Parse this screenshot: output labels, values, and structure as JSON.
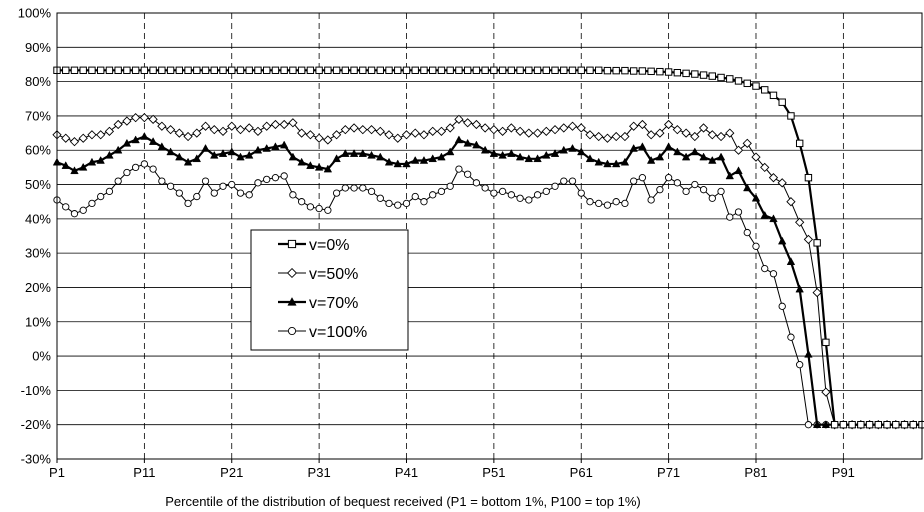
{
  "chart_data": {
    "type": "line",
    "xlabel": "Percentile of the distribution of bequest received (P1 = bottom 1%, P100 = top 1%)",
    "ylabel": "",
    "ylim": [
      -30,
      100
    ],
    "xlim": [
      1,
      100
    ],
    "y_ticks": [
      -30,
      -20,
      -10,
      0,
      10,
      20,
      30,
      40,
      50,
      60,
      70,
      80,
      90,
      100
    ],
    "y_tick_labels": [
      "-30%",
      "-20%",
      "-10%",
      "0%",
      "10%",
      "20%",
      "30%",
      "40%",
      "50%",
      "60%",
      "70%",
      "80%",
      "90%",
      "100%"
    ],
    "x_tick_labels": [
      "P1",
      "P11",
      "P21",
      "P31",
      "P41",
      "P51",
      "P61",
      "P71",
      "P81",
      "P91"
    ],
    "x_tick_positions": [
      1,
      11,
      21,
      31,
      41,
      51,
      61,
      71,
      81,
      91
    ],
    "grid": {
      "horizontal": "solid",
      "vertical": "dashed"
    },
    "legend_position": "left-center",
    "x": [
      1,
      2,
      3,
      4,
      5,
      6,
      7,
      8,
      9,
      10,
      11,
      12,
      13,
      14,
      15,
      16,
      17,
      18,
      19,
      20,
      21,
      22,
      23,
      24,
      25,
      26,
      27,
      28,
      29,
      30,
      31,
      32,
      33,
      34,
      35,
      36,
      37,
      38,
      39,
      40,
      41,
      42,
      43,
      44,
      45,
      46,
      47,
      48,
      49,
      50,
      51,
      52,
      53,
      54,
      55,
      56,
      57,
      58,
      59,
      60,
      61,
      62,
      63,
      64,
      65,
      66,
      67,
      68,
      69,
      70,
      71,
      72,
      73,
      74,
      75,
      76,
      77,
      78,
      79,
      80,
      81,
      82,
      83,
      84,
      85,
      86,
      87,
      88,
      89,
      90,
      91,
      92,
      93,
      94,
      95,
      96,
      97,
      98,
      99,
      100
    ],
    "series": [
      {
        "name": "v=0%",
        "marker": "square-open",
        "line_weight": "bold",
        "values": [
          83.3,
          83.3,
          83.3,
          83.3,
          83.3,
          83.3,
          83.3,
          83.3,
          83.3,
          83.3,
          83.3,
          83.3,
          83.3,
          83.3,
          83.3,
          83.3,
          83.3,
          83.3,
          83.3,
          83.3,
          83.3,
          83.3,
          83.3,
          83.3,
          83.3,
          83.3,
          83.3,
          83.3,
          83.3,
          83.3,
          83.3,
          83.3,
          83.3,
          83.3,
          83.3,
          83.3,
          83.3,
          83.3,
          83.3,
          83.3,
          83.3,
          83.3,
          83.3,
          83.3,
          83.3,
          83.3,
          83.3,
          83.3,
          83.3,
          83.3,
          83.3,
          83.3,
          83.3,
          83.3,
          83.3,
          83.3,
          83.3,
          83.3,
          83.3,
          83.3,
          83.3,
          83.3,
          83.3,
          83.2,
          83.2,
          83.2,
          83.1,
          83.1,
          83.0,
          82.9,
          82.8,
          82.6,
          82.4,
          82.2,
          81.9,
          81.6,
          81.2,
          80.8,
          80.2,
          79.5,
          78.7,
          77.6,
          76.0,
          74.0,
          70.0,
          62.0,
          52.0,
          33.0,
          4.0,
          -20,
          -20,
          -20,
          -20,
          -20,
          -20,
          -20,
          -20,
          -20,
          -20,
          -20
        ]
      },
      {
        "name": "v=50%",
        "marker": "diamond-open",
        "line_weight": "thin",
        "values": [
          64.5,
          63.5,
          62.5,
          63.5,
          64.5,
          64.5,
          65.5,
          67.5,
          68.5,
          69.5,
          69.5,
          69,
          67,
          66,
          65,
          64,
          65,
          67,
          66,
          65.5,
          67,
          66,
          66.5,
          65.5,
          67,
          67.5,
          67.5,
          68,
          65,
          64.5,
          63.5,
          63,
          64.5,
          66,
          66.5,
          66,
          66,
          65.5,
          64.5,
          63.5,
          64.5,
          65,
          64.5,
          65.5,
          65.5,
          66.5,
          69,
          68,
          67.5,
          66.5,
          66,
          65.5,
          66.5,
          65.5,
          65,
          65,
          65.5,
          66,
          66.5,
          67,
          66.5,
          64.5,
          64,
          63.5,
          64,
          64,
          67,
          67.5,
          64.5,
          65,
          67.5,
          66,
          65,
          64,
          66.5,
          64.5,
          64,
          65,
          60,
          62,
          58,
          55,
          52,
          50.5,
          45,
          39,
          34,
          18.5,
          -10.5,
          -20,
          -20,
          -20,
          -20,
          -20,
          -20,
          -20,
          -20,
          -20,
          -20,
          -20
        ]
      },
      {
        "name": "v=70%",
        "marker": "triangle-filled",
        "line_weight": "bold",
        "values": [
          56.5,
          55.5,
          54,
          55,
          56.5,
          57,
          58.5,
          60,
          62,
          63,
          64,
          62.5,
          61,
          59.5,
          58,
          56.5,
          57.5,
          60.5,
          58.5,
          59,
          59.5,
          58,
          58.5,
          60,
          60.5,
          61,
          61.5,
          58,
          56.5,
          55.5,
          55,
          54.5,
          57.5,
          59,
          59,
          59,
          58.5,
          58,
          56.5,
          56,
          56,
          57,
          57,
          57.5,
          58,
          59.5,
          63,
          62,
          61.5,
          60,
          59,
          58.5,
          59,
          58,
          57.5,
          57.5,
          58.5,
          59,
          60,
          60.5,
          59.5,
          57.5,
          56.5,
          56,
          56,
          56.5,
          60.5,
          61,
          57,
          58,
          61,
          59.5,
          58,
          59.5,
          58,
          57,
          58,
          52.5,
          54,
          49,
          46,
          41,
          40,
          33.5,
          27.5,
          19.5,
          0.5,
          -20,
          -20,
          -20,
          -20,
          -20,
          -20,
          -20,
          -20,
          -20,
          -20,
          -20,
          -20,
          -20
        ]
      },
      {
        "name": "v=100%",
        "marker": "circle-open",
        "line_weight": "thin",
        "values": [
          45.5,
          43.5,
          41.5,
          42.5,
          44.5,
          46.5,
          48,
          51,
          53.5,
          55,
          56,
          54.5,
          51,
          49.5,
          47.5,
          44.5,
          46.5,
          51,
          47.5,
          49.5,
          50,
          47.5,
          47,
          50.5,
          51.5,
          52,
          52.5,
          47,
          45,
          43.5,
          43,
          42.5,
          47.5,
          49,
          49,
          49,
          48,
          46,
          44.5,
          44,
          44.5,
          46.5,
          45,
          47,
          48,
          49.5,
          54.5,
          53,
          50.5,
          49,
          47.5,
          48,
          47,
          46,
          45.5,
          47,
          48,
          49.5,
          51,
          51,
          47.5,
          45,
          44.5,
          44,
          45,
          44.5,
          51,
          52,
          45.5,
          48.5,
          52,
          50.5,
          48,
          50,
          48.5,
          46,
          48,
          40.5,
          42,
          36,
          32,
          25.5,
          24,
          14.5,
          5.5,
          -2.5,
          -20,
          -20,
          -20,
          -20,
          -20,
          -20,
          -20,
          -20,
          -20,
          -20,
          -20,
          -20,
          -20,
          -20
        ]
      }
    ]
  }
}
